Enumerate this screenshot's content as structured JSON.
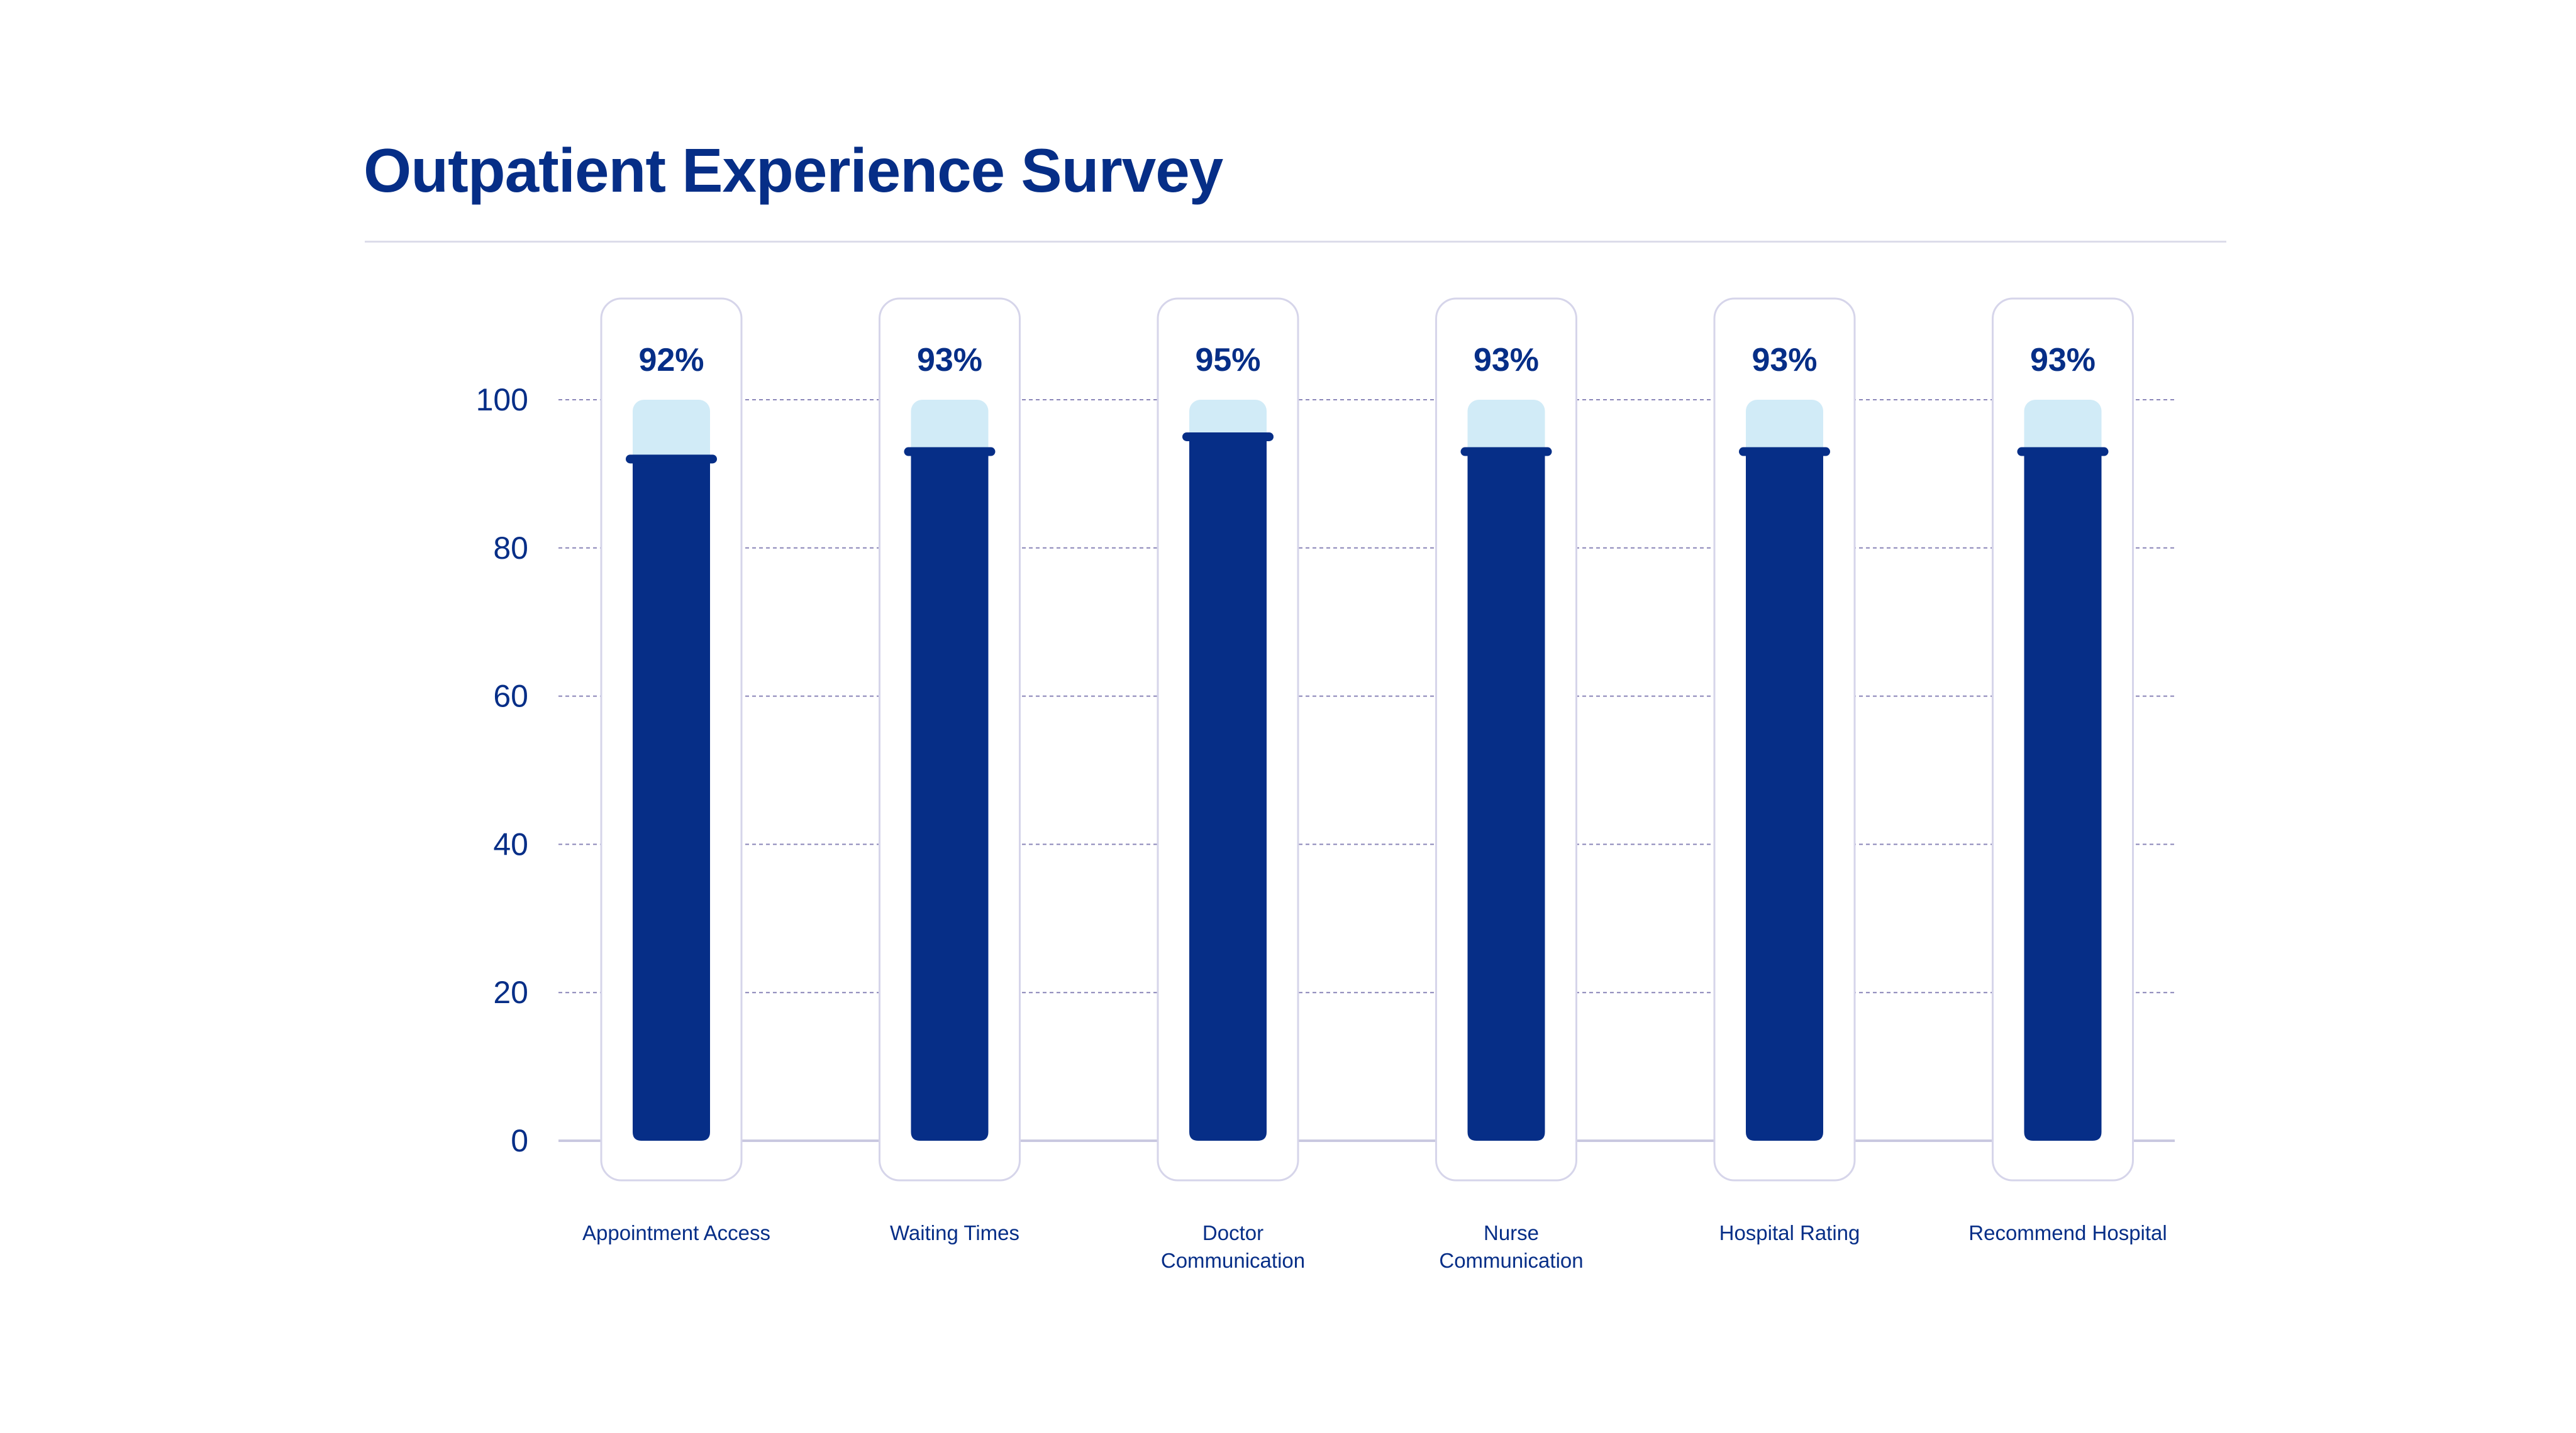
{
  "chart_data": {
    "type": "bar",
    "title": "Outpatient Experience Survey",
    "categories": [
      [
        "Appointment Access"
      ],
      [
        "Waiting Times"
      ],
      [
        "Doctor",
        "Communication"
      ],
      [
        "Nurse",
        "Communication"
      ],
      [
        "Hospital Rating"
      ],
      [
        "Recommend Hospital"
      ]
    ],
    "values": [
      92,
      93,
      95,
      93,
      93,
      93
    ],
    "value_labels": [
      "92%",
      "93%",
      "95%",
      "93%",
      "93%",
      "93%"
    ],
    "ylim": [
      0,
      100
    ],
    "yticks": [
      0,
      20,
      40,
      60,
      80,
      100
    ],
    "grid": true,
    "xlabel": "",
    "ylabel": "",
    "colors": {
      "fill": "#062e87",
      "track": "#d1ebf7",
      "text": "#062e87",
      "card_border": "#d6d5ea",
      "grid": "#8a85b8"
    }
  }
}
